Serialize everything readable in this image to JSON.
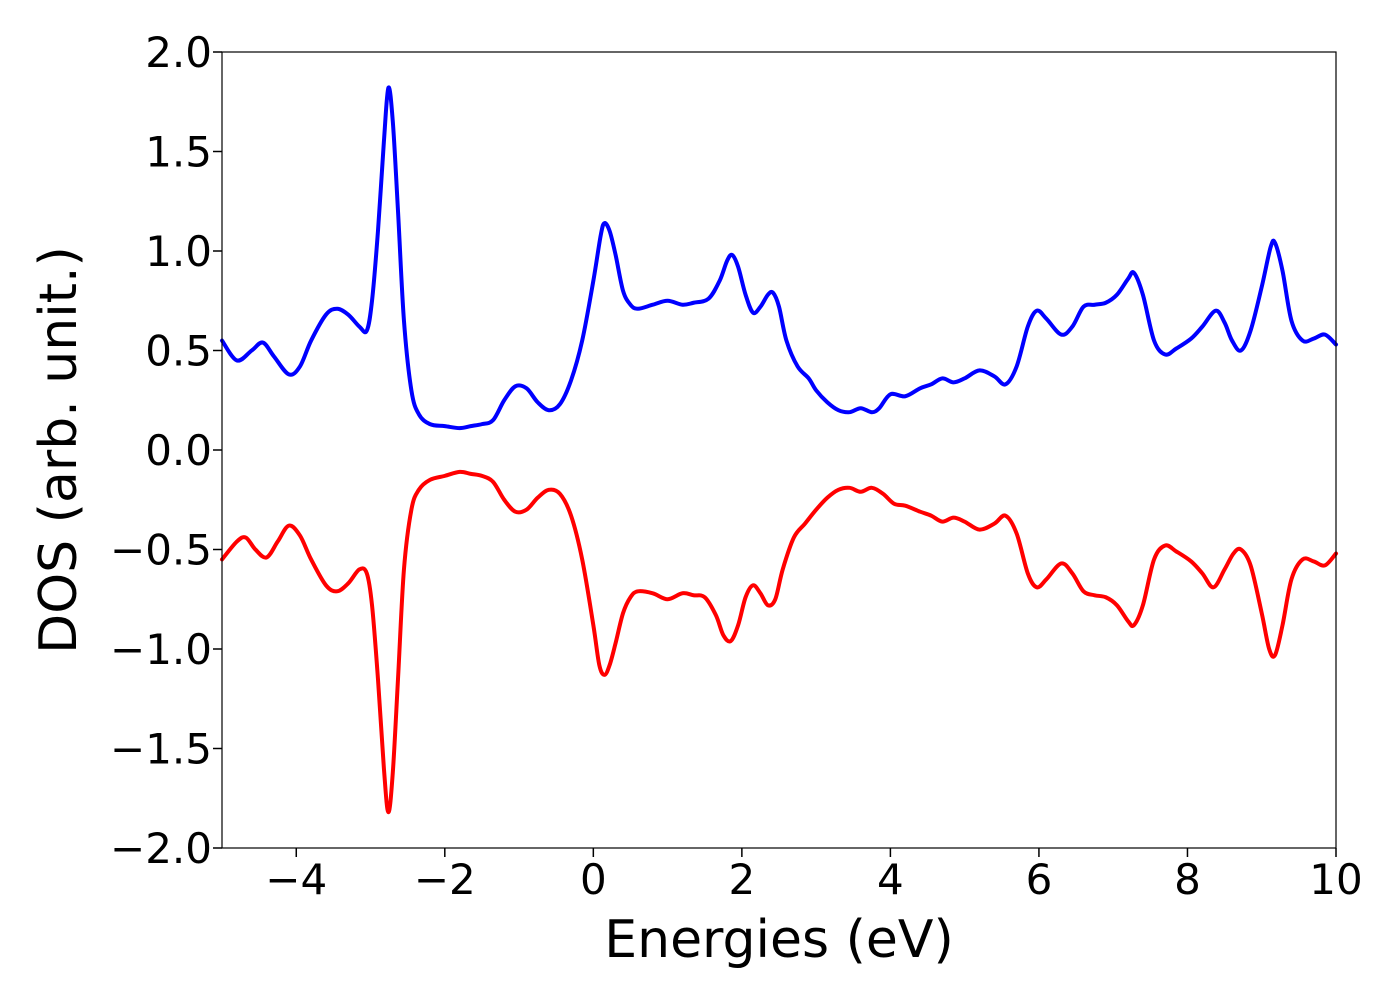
{
  "chart_data": {
    "type": "line",
    "title": "",
    "xlabel": "Energies (eV)",
    "ylabel": "DOS (arb. unit.)",
    "xlim": [
      -5,
      10
    ],
    "ylim": [
      -2.0,
      2.0
    ],
    "grid": false,
    "legend": "none",
    "x_ticks": [
      {
        "value": -4,
        "label": "−4"
      },
      {
        "value": -2,
        "label": "−2"
      },
      {
        "value": 0,
        "label": "0"
      },
      {
        "value": 2,
        "label": "2"
      },
      {
        "value": 4,
        "label": "4"
      },
      {
        "value": 6,
        "label": "6"
      },
      {
        "value": 8,
        "label": "8"
      },
      {
        "value": 10,
        "label": "10"
      }
    ],
    "y_ticks": [
      {
        "value": 2.0,
        "label": "2.0"
      },
      {
        "value": 1.5,
        "label": "1.5"
      },
      {
        "value": 1.0,
        "label": "1.0"
      },
      {
        "value": 0.5,
        "label": "0.5"
      },
      {
        "value": 0.0,
        "label": "0.0"
      },
      {
        "value": -0.5,
        "label": "−0.5"
      },
      {
        "value": -1.0,
        "label": "−1.0"
      },
      {
        "value": -1.5,
        "label": "−1.5"
      },
      {
        "value": -2.0,
        "label": "−2.0"
      }
    ],
    "series": [
      {
        "color": "#0000ff",
        "points": [
          [
            -5.0,
            0.55
          ],
          [
            -4.8,
            0.45
          ],
          [
            -4.6,
            0.5
          ],
          [
            -4.45,
            0.54
          ],
          [
            -4.3,
            0.47
          ],
          [
            -4.1,
            0.38
          ],
          [
            -3.95,
            0.42
          ],
          [
            -3.8,
            0.55
          ],
          [
            -3.6,
            0.68
          ],
          [
            -3.45,
            0.71
          ],
          [
            -3.3,
            0.68
          ],
          [
            -3.15,
            0.62
          ],
          [
            -3.05,
            0.6
          ],
          [
            -2.98,
            0.75
          ],
          [
            -2.9,
            1.1
          ],
          [
            -2.82,
            1.55
          ],
          [
            -2.76,
            1.82
          ],
          [
            -2.7,
            1.65
          ],
          [
            -2.63,
            1.2
          ],
          [
            -2.55,
            0.65
          ],
          [
            -2.45,
            0.3
          ],
          [
            -2.35,
            0.18
          ],
          [
            -2.2,
            0.13
          ],
          [
            -2.0,
            0.12
          ],
          [
            -1.8,
            0.11
          ],
          [
            -1.65,
            0.12
          ],
          [
            -1.5,
            0.13
          ],
          [
            -1.35,
            0.15
          ],
          [
            -1.2,
            0.25
          ],
          [
            -1.05,
            0.32
          ],
          [
            -0.9,
            0.31
          ],
          [
            -0.75,
            0.24
          ],
          [
            -0.6,
            0.2
          ],
          [
            -0.45,
            0.23
          ],
          [
            -0.3,
            0.35
          ],
          [
            -0.15,
            0.55
          ],
          [
            0.0,
            0.85
          ],
          [
            0.1,
            1.08
          ],
          [
            0.15,
            1.14
          ],
          [
            0.22,
            1.1
          ],
          [
            0.3,
            0.98
          ],
          [
            0.4,
            0.8
          ],
          [
            0.5,
            0.73
          ],
          [
            0.6,
            0.71
          ],
          [
            0.8,
            0.73
          ],
          [
            1.0,
            0.75
          ],
          [
            1.2,
            0.73
          ],
          [
            1.35,
            0.74
          ],
          [
            1.55,
            0.76
          ],
          [
            1.7,
            0.85
          ],
          [
            1.8,
            0.95
          ],
          [
            1.87,
            0.98
          ],
          [
            1.95,
            0.92
          ],
          [
            2.05,
            0.78
          ],
          [
            2.15,
            0.69
          ],
          [
            2.25,
            0.72
          ],
          [
            2.35,
            0.78
          ],
          [
            2.42,
            0.79
          ],
          [
            2.5,
            0.72
          ],
          [
            2.6,
            0.55
          ],
          [
            2.75,
            0.42
          ],
          [
            2.9,
            0.36
          ],
          [
            3.0,
            0.3
          ],
          [
            3.15,
            0.24
          ],
          [
            3.3,
            0.2
          ],
          [
            3.45,
            0.19
          ],
          [
            3.6,
            0.21
          ],
          [
            3.75,
            0.19
          ],
          [
            3.85,
            0.21
          ],
          [
            4.0,
            0.28
          ],
          [
            4.2,
            0.27
          ],
          [
            4.4,
            0.31
          ],
          [
            4.55,
            0.33
          ],
          [
            4.7,
            0.36
          ],
          [
            4.85,
            0.34
          ],
          [
            5.0,
            0.36
          ],
          [
            5.2,
            0.4
          ],
          [
            5.4,
            0.37
          ],
          [
            5.55,
            0.33
          ],
          [
            5.7,
            0.42
          ],
          [
            5.85,
            0.62
          ],
          [
            5.97,
            0.7
          ],
          [
            6.1,
            0.66
          ],
          [
            6.3,
            0.58
          ],
          [
            6.45,
            0.62
          ],
          [
            6.6,
            0.72
          ],
          [
            6.75,
            0.73
          ],
          [
            6.9,
            0.74
          ],
          [
            7.05,
            0.78
          ],
          [
            7.2,
            0.86
          ],
          [
            7.28,
            0.89
          ],
          [
            7.4,
            0.78
          ],
          [
            7.55,
            0.55
          ],
          [
            7.7,
            0.48
          ],
          [
            7.85,
            0.51
          ],
          [
            8.05,
            0.56
          ],
          [
            8.2,
            0.62
          ],
          [
            8.38,
            0.7
          ],
          [
            8.5,
            0.64
          ],
          [
            8.6,
            0.55
          ],
          [
            8.72,
            0.5
          ],
          [
            8.85,
            0.6
          ],
          [
            9.0,
            0.82
          ],
          [
            9.12,
            1.02
          ],
          [
            9.18,
            1.04
          ],
          [
            9.28,
            0.9
          ],
          [
            9.4,
            0.65
          ],
          [
            9.55,
            0.55
          ],
          [
            9.7,
            0.56
          ],
          [
            9.85,
            0.58
          ],
          [
            10.0,
            0.53
          ]
        ]
      },
      {
        "color": "#ff0000",
        "points": [
          [
            -5.0,
            -0.55
          ],
          [
            -4.8,
            -0.46
          ],
          [
            -4.68,
            -0.44
          ],
          [
            -4.55,
            -0.5
          ],
          [
            -4.4,
            -0.54
          ],
          [
            -4.25,
            -0.46
          ],
          [
            -4.1,
            -0.38
          ],
          [
            -3.95,
            -0.43
          ],
          [
            -3.8,
            -0.55
          ],
          [
            -3.6,
            -0.68
          ],
          [
            -3.45,
            -0.71
          ],
          [
            -3.3,
            -0.67
          ],
          [
            -3.15,
            -0.6
          ],
          [
            -3.05,
            -0.62
          ],
          [
            -2.98,
            -0.78
          ],
          [
            -2.9,
            -1.15
          ],
          [
            -2.82,
            -1.6
          ],
          [
            -2.76,
            -1.82
          ],
          [
            -2.7,
            -1.62
          ],
          [
            -2.63,
            -1.15
          ],
          [
            -2.55,
            -0.6
          ],
          [
            -2.45,
            -0.3
          ],
          [
            -2.35,
            -0.2
          ],
          [
            -2.2,
            -0.15
          ],
          [
            -2.0,
            -0.13
          ],
          [
            -1.8,
            -0.11
          ],
          [
            -1.65,
            -0.12
          ],
          [
            -1.5,
            -0.13
          ],
          [
            -1.35,
            -0.16
          ],
          [
            -1.2,
            -0.25
          ],
          [
            -1.05,
            -0.31
          ],
          [
            -0.9,
            -0.3
          ],
          [
            -0.75,
            -0.24
          ],
          [
            -0.6,
            -0.2
          ],
          [
            -0.45,
            -0.22
          ],
          [
            -0.3,
            -0.33
          ],
          [
            -0.15,
            -0.55
          ],
          [
            0.0,
            -0.88
          ],
          [
            0.08,
            -1.08
          ],
          [
            0.15,
            -1.13
          ],
          [
            0.22,
            -1.08
          ],
          [
            0.3,
            -0.97
          ],
          [
            0.4,
            -0.82
          ],
          [
            0.5,
            -0.74
          ],
          [
            0.6,
            -0.71
          ],
          [
            0.8,
            -0.72
          ],
          [
            1.0,
            -0.75
          ],
          [
            1.2,
            -0.72
          ],
          [
            1.35,
            -0.73
          ],
          [
            1.5,
            -0.74
          ],
          [
            1.65,
            -0.83
          ],
          [
            1.75,
            -0.93
          ],
          [
            1.85,
            -0.96
          ],
          [
            1.95,
            -0.88
          ],
          [
            2.05,
            -0.74
          ],
          [
            2.15,
            -0.68
          ],
          [
            2.25,
            -0.72
          ],
          [
            2.35,
            -0.78
          ],
          [
            2.45,
            -0.75
          ],
          [
            2.55,
            -0.6
          ],
          [
            2.7,
            -0.44
          ],
          [
            2.85,
            -0.37
          ],
          [
            3.0,
            -0.3
          ],
          [
            3.15,
            -0.24
          ],
          [
            3.3,
            -0.2
          ],
          [
            3.45,
            -0.19
          ],
          [
            3.6,
            -0.21
          ],
          [
            3.75,
            -0.19
          ],
          [
            3.9,
            -0.22
          ],
          [
            4.05,
            -0.27
          ],
          [
            4.2,
            -0.28
          ],
          [
            4.4,
            -0.31
          ],
          [
            4.55,
            -0.33
          ],
          [
            4.7,
            -0.36
          ],
          [
            4.85,
            -0.34
          ],
          [
            5.0,
            -0.36
          ],
          [
            5.2,
            -0.4
          ],
          [
            5.4,
            -0.37
          ],
          [
            5.55,
            -0.33
          ],
          [
            5.7,
            -0.42
          ],
          [
            5.85,
            -0.62
          ],
          [
            5.97,
            -0.69
          ],
          [
            6.1,
            -0.65
          ],
          [
            6.3,
            -0.57
          ],
          [
            6.45,
            -0.62
          ],
          [
            6.6,
            -0.71
          ],
          [
            6.75,
            -0.73
          ],
          [
            6.9,
            -0.74
          ],
          [
            7.05,
            -0.78
          ],
          [
            7.2,
            -0.86
          ],
          [
            7.28,
            -0.88
          ],
          [
            7.4,
            -0.78
          ],
          [
            7.55,
            -0.55
          ],
          [
            7.7,
            -0.48
          ],
          [
            7.85,
            -0.51
          ],
          [
            8.05,
            -0.56
          ],
          [
            8.2,
            -0.62
          ],
          [
            8.35,
            -0.69
          ],
          [
            8.5,
            -0.6
          ],
          [
            8.62,
            -0.52
          ],
          [
            8.72,
            -0.5
          ],
          [
            8.85,
            -0.58
          ],
          [
            9.0,
            -0.82
          ],
          [
            9.1,
            -1.0
          ],
          [
            9.18,
            -1.03
          ],
          [
            9.28,
            -0.88
          ],
          [
            9.4,
            -0.65
          ],
          [
            9.55,
            -0.55
          ],
          [
            9.7,
            -0.56
          ],
          [
            9.85,
            -0.58
          ],
          [
            10.0,
            -0.52
          ]
        ]
      }
    ]
  }
}
